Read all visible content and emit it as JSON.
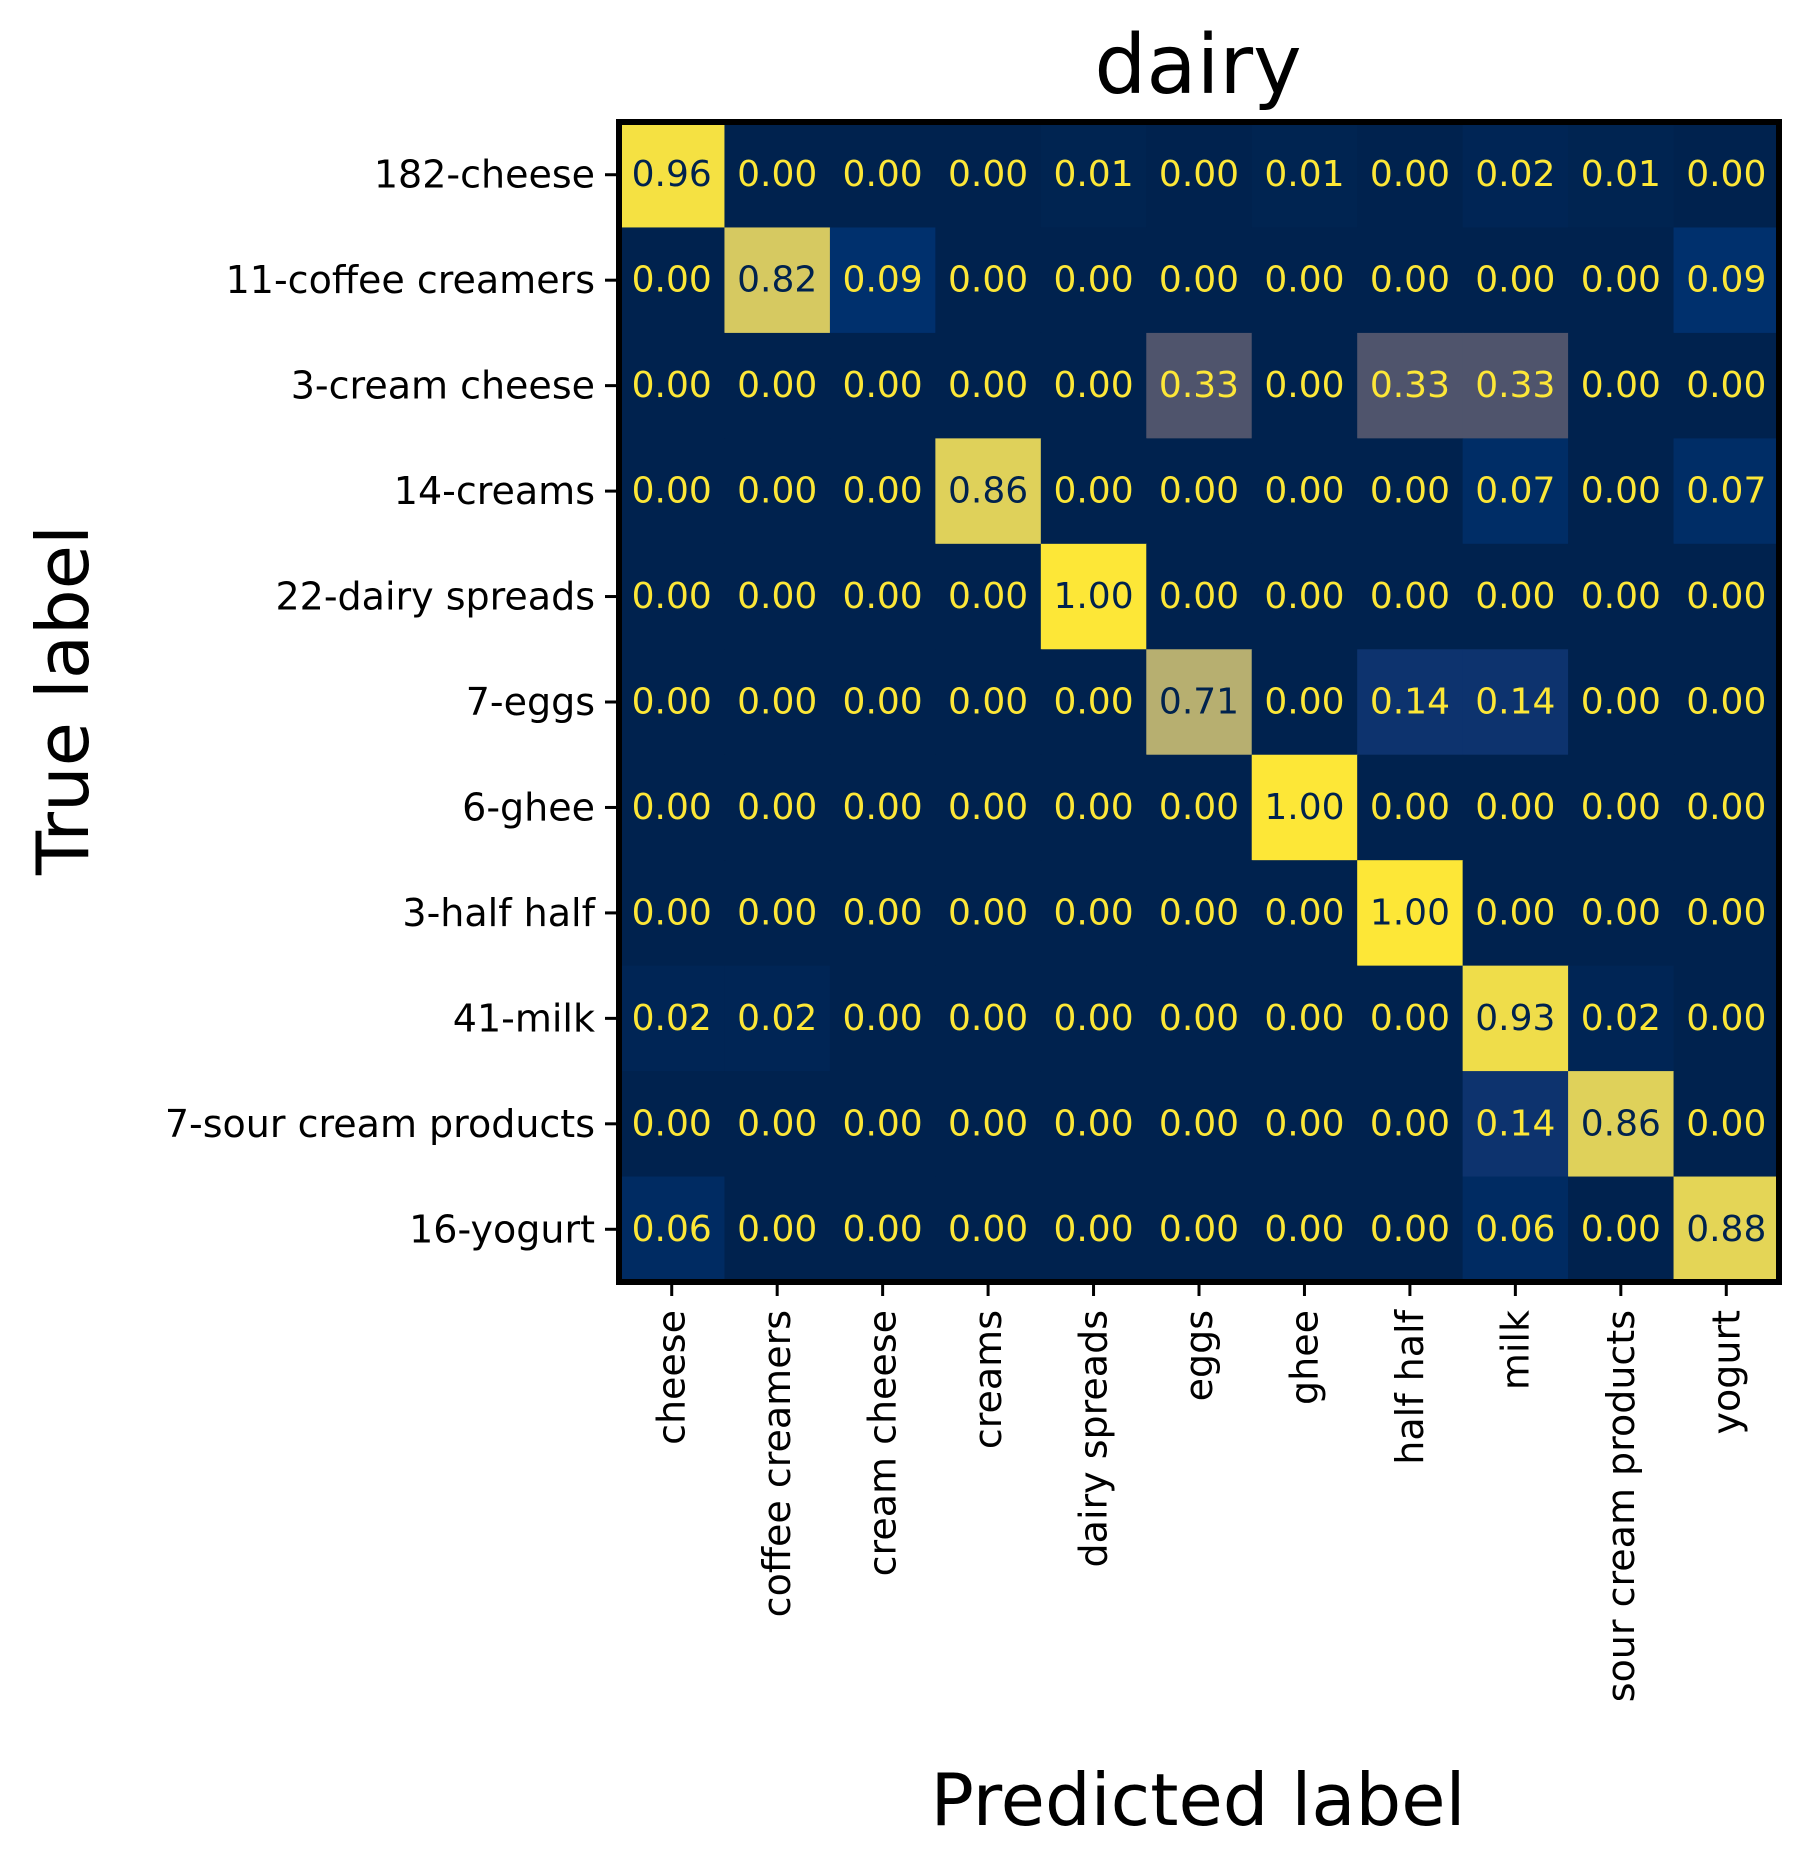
{
  "chart_data": {
    "type": "heatmap",
    "title": "dairy",
    "xlabel": "Predicted label",
    "ylabel": "True label",
    "x_categories": [
      "cheese",
      "coffee creamers",
      "cream cheese",
      "creams",
      "dairy spreads",
      "eggs",
      "ghee",
      "half half",
      "milk",
      "sour cream products",
      "yogurt"
    ],
    "y_categories": [
      "182-cheese",
      "11-coffee creamers",
      "3-cream cheese",
      "14-creams",
      "22-dairy spreads",
      "7-eggs",
      "6-ghee",
      "3-half half",
      "41-milk",
      "7-sour cream products",
      "16-yogurt"
    ],
    "values": [
      [
        0.96,
        0.0,
        0.0,
        0.0,
        0.01,
        0.0,
        0.01,
        0.0,
        0.02,
        0.01,
        0.0
      ],
      [
        0.0,
        0.82,
        0.09,
        0.0,
        0.0,
        0.0,
        0.0,
        0.0,
        0.0,
        0.0,
        0.09
      ],
      [
        0.0,
        0.0,
        0.0,
        0.0,
        0.0,
        0.33,
        0.0,
        0.33,
        0.33,
        0.0,
        0.0
      ],
      [
        0.0,
        0.0,
        0.0,
        0.86,
        0.0,
        0.0,
        0.0,
        0.0,
        0.07,
        0.0,
        0.07
      ],
      [
        0.0,
        0.0,
        0.0,
        0.0,
        1.0,
        0.0,
        0.0,
        0.0,
        0.0,
        0.0,
        0.0
      ],
      [
        0.0,
        0.0,
        0.0,
        0.0,
        0.0,
        0.71,
        0.0,
        0.14,
        0.14,
        0.0,
        0.0
      ],
      [
        0.0,
        0.0,
        0.0,
        0.0,
        0.0,
        0.0,
        1.0,
        0.0,
        0.0,
        0.0,
        0.0
      ],
      [
        0.0,
        0.0,
        0.0,
        0.0,
        0.0,
        0.0,
        0.0,
        1.0,
        0.0,
        0.0,
        0.0
      ],
      [
        0.02,
        0.02,
        0.0,
        0.0,
        0.0,
        0.0,
        0.0,
        0.0,
        0.93,
        0.02,
        0.0
      ],
      [
        0.0,
        0.0,
        0.0,
        0.0,
        0.0,
        0.0,
        0.0,
        0.0,
        0.14,
        0.86,
        0.0
      ],
      [
        0.06,
        0.0,
        0.0,
        0.0,
        0.0,
        0.0,
        0.0,
        0.0,
        0.06,
        0.0,
        0.88
      ]
    ],
    "value_range": [
      0,
      1
    ],
    "colormap": "cividis",
    "colors": {
      "text_on_dark": "#fde737",
      "text_on_light": "#00224e",
      "frame": "#000000"
    },
    "grid": false,
    "legend": "none"
  }
}
